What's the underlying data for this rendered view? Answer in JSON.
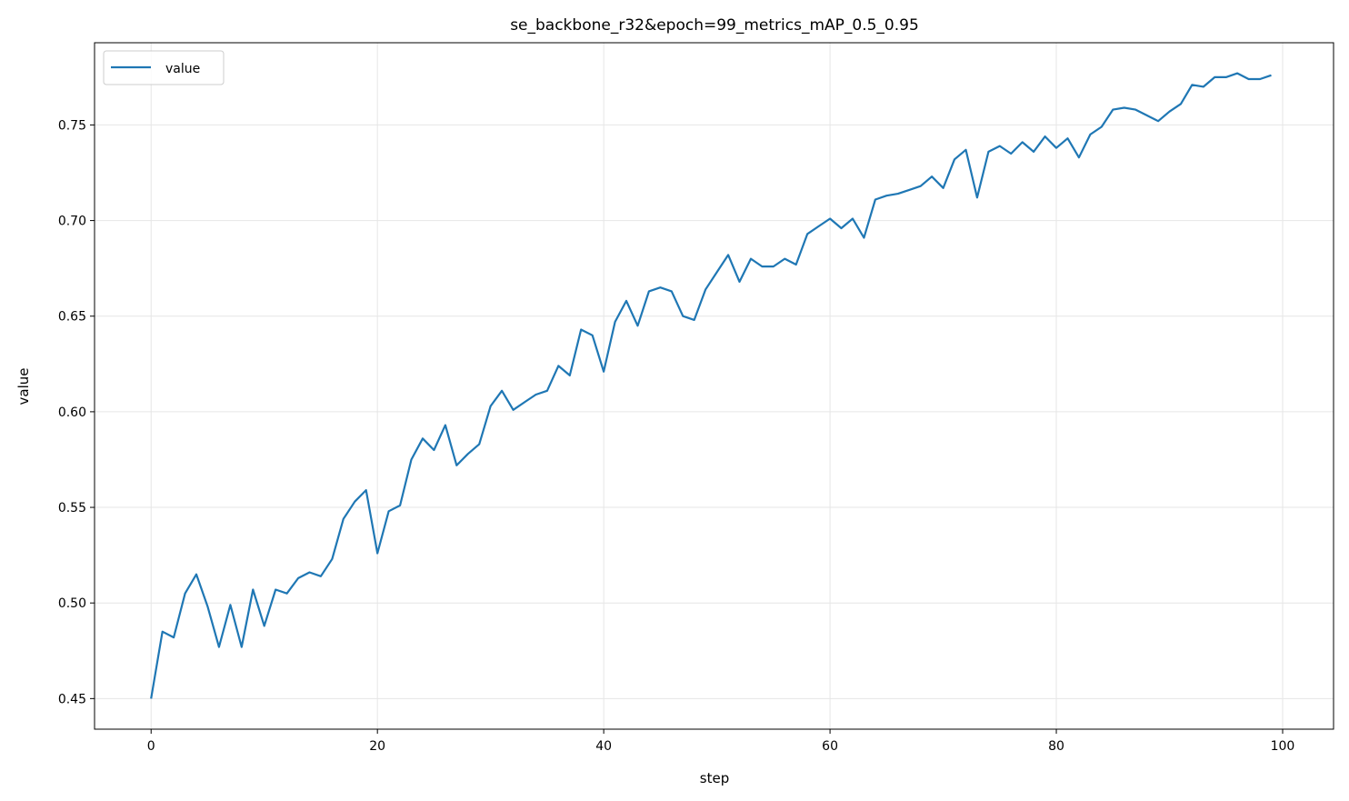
{
  "chart_data": {
    "type": "line",
    "title": "se_backbone_r32&epoch=99_metrics_mAP_0.5_0.95",
    "xlabel": "step",
    "ylabel": "value",
    "xlim": [
      -5,
      104.5
    ],
    "ylim": [
      0.434,
      0.793
    ],
    "xticks": [
      0,
      20,
      40,
      60,
      80,
      100
    ],
    "xtick_labels": [
      "0",
      "20",
      "40",
      "60",
      "80",
      "100"
    ],
    "yticks": [
      0.45,
      0.5,
      0.55,
      0.6,
      0.65,
      0.7,
      0.75
    ],
    "ytick_labels": [
      "0.45",
      "0.50",
      "0.55",
      "0.60",
      "0.65",
      "0.70",
      "0.75"
    ],
    "grid": true,
    "legend_position": "top-left",
    "series": [
      {
        "name": "value",
        "color": "#1f77b4",
        "x": [
          0,
          1,
          2,
          3,
          4,
          5,
          6,
          7,
          8,
          9,
          10,
          11,
          12,
          13,
          14,
          15,
          16,
          17,
          18,
          19,
          20,
          21,
          22,
          23,
          24,
          25,
          26,
          27,
          28,
          29,
          30,
          31,
          32,
          33,
          34,
          35,
          36,
          37,
          38,
          39,
          40,
          41,
          42,
          43,
          44,
          45,
          46,
          47,
          48,
          49,
          50,
          51,
          52,
          53,
          54,
          55,
          56,
          57,
          58,
          59,
          60,
          61,
          62,
          63,
          64,
          65,
          66,
          67,
          68,
          69,
          70,
          71,
          72,
          73,
          74,
          75,
          76,
          77,
          78,
          79,
          80,
          81,
          82,
          83,
          84,
          85,
          86,
          87,
          88,
          89,
          90,
          91,
          92,
          93,
          94,
          95,
          96,
          97,
          98,
          99
        ],
        "y": [
          0.45,
          0.485,
          0.482,
          0.505,
          0.515,
          0.498,
          0.477,
          0.499,
          0.477,
          0.507,
          0.488,
          0.507,
          0.505,
          0.513,
          0.516,
          0.514,
          0.523,
          0.544,
          0.553,
          0.559,
          0.526,
          0.548,
          0.551,
          0.575,
          0.586,
          0.58,
          0.593,
          0.572,
          0.578,
          0.583,
          0.603,
          0.611,
          0.601,
          0.605,
          0.609,
          0.611,
          0.624,
          0.619,
          0.643,
          0.64,
          0.621,
          0.647,
          0.658,
          0.645,
          0.663,
          0.665,
          0.663,
          0.65,
          0.648,
          0.664,
          0.673,
          0.682,
          0.668,
          0.68,
          0.676,
          0.676,
          0.68,
          0.677,
          0.693,
          0.697,
          0.701,
          0.696,
          0.701,
          0.691,
          0.711,
          0.713,
          0.714,
          0.716,
          0.718,
          0.723,
          0.717,
          0.732,
          0.737,
          0.712,
          0.736,
          0.739,
          0.735,
          0.741,
          0.736,
          0.744,
          0.738,
          0.743,
          0.733,
          0.745,
          0.749,
          0.758,
          0.759,
          0.758,
          0.755,
          0.752,
          0.757,
          0.761,
          0.771,
          0.77,
          0.775,
          0.775,
          0.777,
          0.774,
          0.774,
          0.776
        ]
      }
    ]
  }
}
